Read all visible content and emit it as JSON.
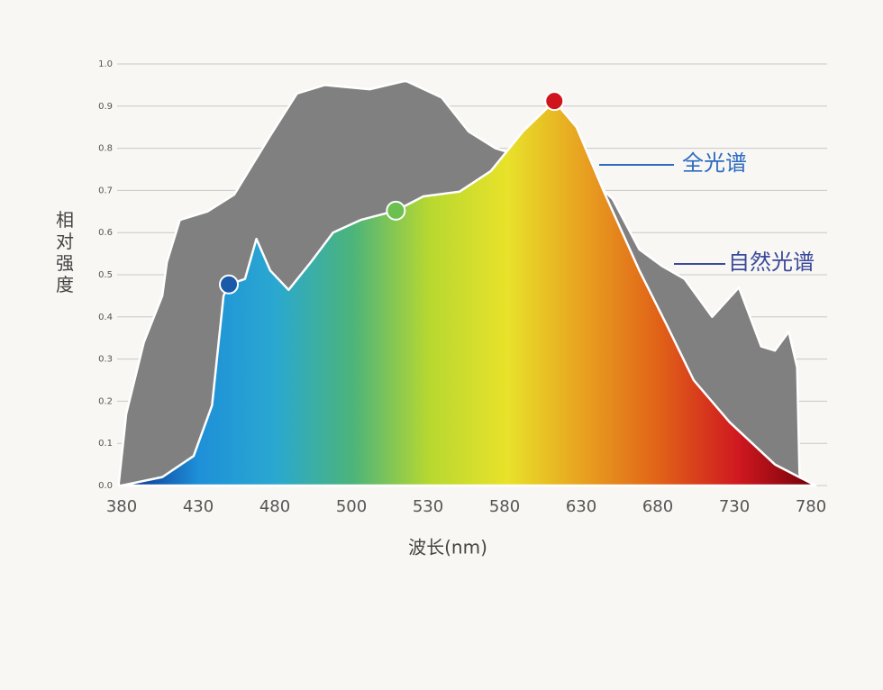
{
  "chart_data": {
    "type": "area",
    "xlabel": "波长(nm)",
    "ylabel": "相对强度",
    "categories": [
      "380",
      "430",
      "480",
      "500",
      "530",
      "580",
      "630",
      "680",
      "730",
      "780"
    ],
    "ylim": [
      0,
      1
    ],
    "yticks": [
      {
        "value": 0,
        "label": "0.0"
      },
      0.1,
      0.2,
      0.3,
      0.4,
      0.5,
      0.6,
      0.7,
      0.8,
      0.9,
      {
        "value": 1,
        "label": "1.0"
      }
    ],
    "grid": true,
    "series": [
      {
        "name": "自然光谱",
        "color": "#808080",
        "label_color": "#3a4a9a",
        "x": [
          -0.04,
          0.06,
          0.29,
          0.53,
          0.59,
          0.76,
          1.12,
          1.47,
          1.94,
          2.29,
          2.65,
          3.24,
          3.71,
          4.18,
          4.53,
          4.88,
          5.24,
          5.94,
          6.41,
          6.76,
          7.06,
          7.35,
          7.71,
          8.06,
          8.35,
          8.53,
          8.71,
          8.82,
          8.85,
          8.88
        ],
        "values": [
          0,
          0.17,
          0.34,
          0.45,
          0.53,
          0.63,
          0.65,
          0.69,
          0.83,
          0.93,
          0.95,
          0.94,
          0.96,
          0.92,
          0.84,
          0.8,
          0.78,
          0.76,
          0.68,
          0.56,
          0.52,
          0.49,
          0.4,
          0.47,
          0.33,
          0.32,
          0.365,
          0.28,
          0.03,
          0
        ]
      },
      {
        "name": "全光谱",
        "colors": [
          "#0a2a8a",
          "#1e90d8",
          "#2aa8d0",
          "#4cb47a",
          "#b8d830",
          "#e8e22a",
          "#e8a020",
          "#e06018",
          "#d01820",
          "#700008"
        ],
        "label_color": "#2d6bc0",
        "x": [
          0,
          0.53,
          0.94,
          1.18,
          1.33,
          1.4,
          1.61,
          1.76,
          1.94,
          2.18,
          2.47,
          2.76,
          3.12,
          3.58,
          3.94,
          4.41,
          4.82,
          5.24,
          5.65,
          5.94,
          6.29,
          6.76,
          7.12,
          7.47,
          7.94,
          8.53,
          9.06
        ],
        "values": [
          0,
          0.02,
          0.07,
          0.19,
          0.45,
          0.477,
          0.49,
          0.585,
          0.51,
          0.464,
          0.53,
          0.6,
          0.63,
          0.652,
          0.686,
          0.697,
          0.746,
          0.84,
          0.912,
          0.85,
          0.7,
          0.51,
          0.38,
          0.25,
          0.15,
          0.05,
          0
        ]
      }
    ],
    "markers": [
      {
        "x": 1.4,
        "y": 0.477,
        "color": "#1a5aa8"
      },
      {
        "x": 3.58,
        "y": 0.652,
        "color": "#6cc050"
      },
      {
        "x": 5.65,
        "y": 0.912,
        "color": "#d0141e"
      }
    ]
  }
}
